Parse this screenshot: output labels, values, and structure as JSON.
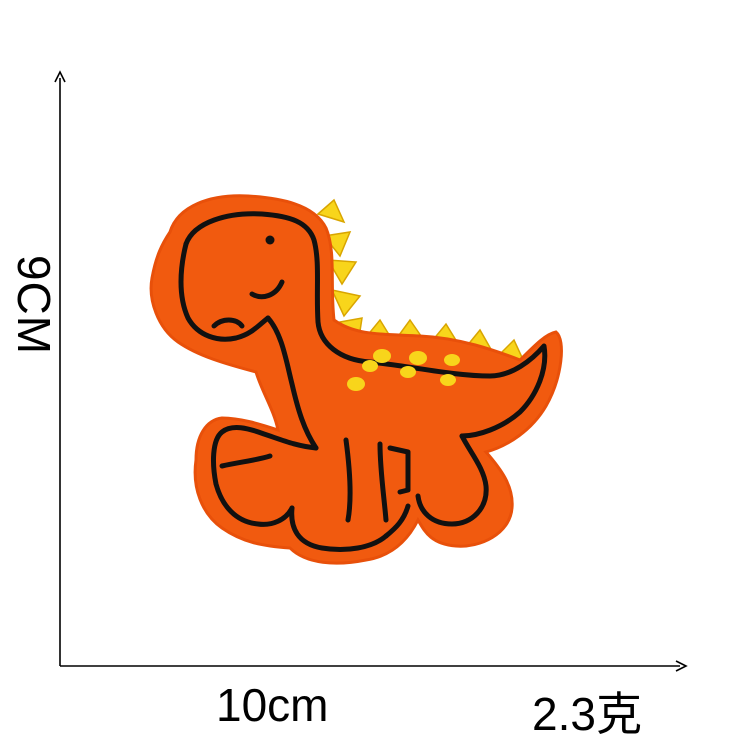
{
  "dimensions": {
    "height_label": "9CM",
    "width_label": "10cm",
    "weight_label": "2.3克"
  },
  "product": {
    "subject": "dinosaur-patch-icon",
    "colors": {
      "body": "#f15a0f",
      "outline": "#111111",
      "spikes": "#f8d51b",
      "dots": "#f8d51b"
    }
  }
}
